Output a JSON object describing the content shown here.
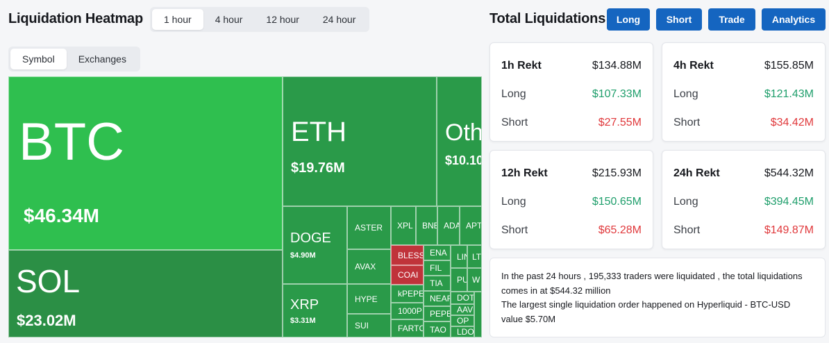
{
  "heatmap": {
    "title": "Liquidation Heatmap",
    "time_tabs": [
      "1 hour",
      "4 hour",
      "12 hour",
      "24 hour"
    ],
    "active_time_tab": "1 hour",
    "view_tabs": [
      "Symbol",
      "Exchanges"
    ],
    "active_view_tab": "Symbol",
    "tiles": {
      "btc": {
        "symbol": "BTC",
        "value": "$46.34M"
      },
      "eth": {
        "symbol": "ETH",
        "value": "$19.76M"
      },
      "other": {
        "symbol": "Oth",
        "value": "$10.10"
      },
      "sol": {
        "symbol": "SOL",
        "value": "$23.02M"
      },
      "doge": {
        "symbol": "DOGE",
        "value": "$4.90M"
      },
      "xrp": {
        "symbol": "XRP",
        "value": "$3.31M"
      },
      "small": [
        "ASTER",
        "XPL",
        "BNE",
        "ADA",
        "APT",
        "AVAX",
        "HYPE",
        "SUI",
        "BLESS",
        "COAI",
        "kPEPE",
        "1000P",
        "FARTC",
        "ENA",
        "FIL",
        "TIA",
        "NEAR",
        "PEPE",
        "TAO",
        "LIN",
        "LT",
        "PU",
        "W",
        "DOT",
        "AAV",
        "OP",
        "LDO"
      ]
    }
  },
  "total": {
    "title": "Total Liquidations",
    "buttons": [
      "Long",
      "Short",
      "Trade",
      "Analytics"
    ],
    "button_color": "#1565c0",
    "cards": [
      {
        "label": "1h Rekt",
        "total": "$134.88M",
        "long_label": "Long",
        "long": "$107.33M",
        "short_label": "Short",
        "short": "$27.55M"
      },
      {
        "label": "4h Rekt",
        "total": "$155.85M",
        "long_label": "Long",
        "long": "$121.43M",
        "short_label": "Short",
        "short": "$34.42M"
      },
      {
        "label": "12h Rekt",
        "total": "$215.93M",
        "long_label": "Long",
        "long": "$150.65M",
        "short_label": "Short",
        "short": "$65.28M"
      },
      {
        "label": "24h Rekt",
        "total": "$544.32M",
        "long_label": "Long",
        "long": "$394.45M",
        "short_label": "Short",
        "short": "$149.87M"
      }
    ],
    "summary_line1": "In the past 24 hours , 195,333 traders were liquidated , the total liquidations comes in at $544.32 million",
    "summary_line2": "The largest single liquidation order happened on Hyperliquid - BTC-USD value $5.70M"
  },
  "colors": {
    "long_green": "#1e9e6b",
    "short_red": "#e0383b",
    "tile_bright": "#2fbf4f",
    "tile_dark": "#2a9a49",
    "tile_red": "#c0333a"
  }
}
